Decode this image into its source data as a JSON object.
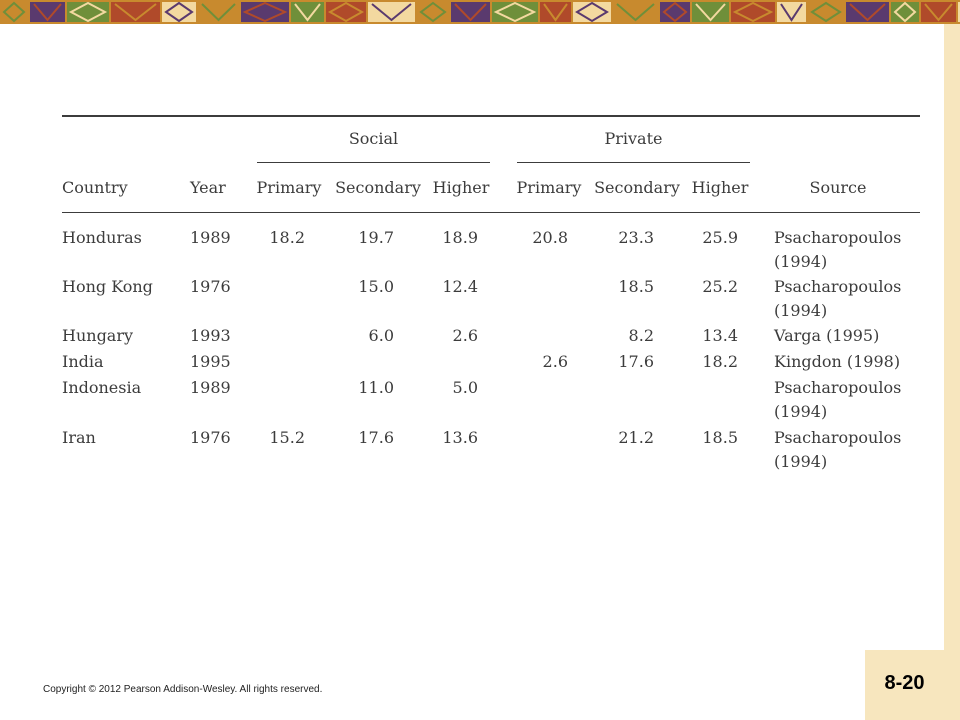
{
  "table": {
    "group_headers": [
      "Social",
      "Private"
    ],
    "columns": [
      "Country",
      "Year",
      "Primary",
      "Secondary",
      "Higher",
      "Primary",
      "Secondary",
      "Higher",
      "Source"
    ],
    "rows": [
      {
        "country": "Honduras",
        "year": "1989",
        "s_primary": "18.2",
        "s_secondary": "19.7",
        "s_higher": "18.9",
        "p_primary": "20.8",
        "p_secondary": "23.3",
        "p_higher": "25.9",
        "source1": "Psacharopoulos",
        "source2": "(1994)"
      },
      {
        "country": "Hong Kong",
        "year": "1976",
        "s_primary": "",
        "s_secondary": "15.0",
        "s_higher": "12.4",
        "p_primary": "",
        "p_secondary": "18.5",
        "p_higher": "25.2",
        "source1": "Psacharopoulos",
        "source2": "(1994)"
      },
      {
        "country": "Hungary",
        "year": "1993",
        "s_primary": "",
        "s_secondary": "6.0",
        "s_higher": "2.6",
        "p_primary": "",
        "p_secondary": "8.2",
        "p_higher": "13.4",
        "source1": "Varga (1995)",
        "source2": ""
      },
      {
        "country": "India",
        "year": "1995",
        "s_primary": "",
        "s_secondary": "",
        "s_higher": "",
        "p_primary": "2.6",
        "p_secondary": "17.6",
        "p_higher": "18.2",
        "source1": "Kingdon (1998)",
        "source2": ""
      },
      {
        "country": "Indonesia",
        "year": "1989",
        "s_primary": "",
        "s_secondary": "11.0",
        "s_higher": "5.0",
        "p_primary": "",
        "p_secondary": "",
        "p_higher": "",
        "source1": "Psacharopoulos",
        "source2": "(1994)"
      },
      {
        "country": "Iran",
        "year": "1976",
        "s_primary": "15.2",
        "s_secondary": "17.6",
        "s_higher": "13.6",
        "p_primary": "",
        "p_secondary": "21.2",
        "p_higher": "18.5",
        "source1": "Psacharopoulos",
        "source2": "(1994)"
      }
    ]
  },
  "footer": {
    "copyright": "Copyright © 2012 Pearson Addison-Wesley. All rights reserved.",
    "page_number": "8-20"
  },
  "colors": {
    "band_gold": "#c88a2e",
    "band_purple": "#5a3a6e",
    "band_green": "#6f8f3a",
    "band_red": "#b04a2a",
    "band_cream": "#f3d9a0",
    "side_cream": "#f7e6be"
  }
}
